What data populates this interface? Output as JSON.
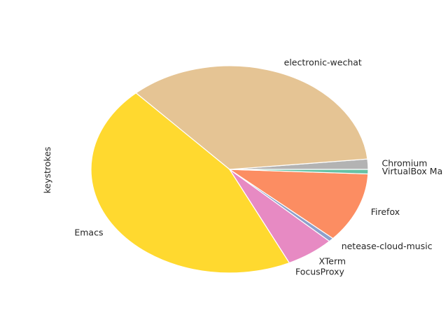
{
  "chart_data": {
    "type": "pie",
    "ylabel": "keystrokes",
    "slices": [
      {
        "label": "Chromium",
        "value": 1.6,
        "color": "#b3b3b3"
      },
      {
        "label": "electronic-wechat",
        "value": 35.2,
        "color": "#e5c494"
      },
      {
        "label": "Emacs",
        "value": 45.3,
        "color": "#ffd92f"
      },
      {
        "label": "FocusProxy",
        "value": 0.0,
        "color": "#a6d854"
      },
      {
        "label": "XTerm",
        "value": 5.7,
        "color": "#e78ac3"
      },
      {
        "label": "netease-cloud-music",
        "value": 0.6,
        "color": "#8da0cb"
      },
      {
        "label": "Firefox",
        "value": 10.9,
        "color": "#fc8d62"
      },
      {
        "label": "VirtualBox Ma",
        "value": 0.7,
        "color": "#66c2a5"
      }
    ]
  }
}
